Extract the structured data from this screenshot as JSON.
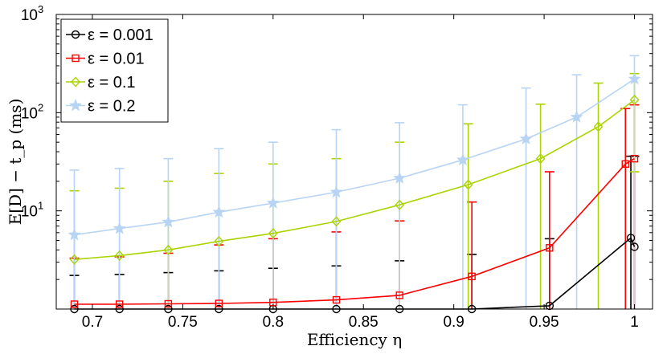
{
  "chart_data": {
    "type": "line",
    "title": "",
    "xlabel": "Efficiency η",
    "ylabel": "E[D] − t_p (ms)",
    "yscale": "log",
    "xlim": [
      0.68,
      1.01
    ],
    "ylim": [
      1,
      1000
    ],
    "x_ticks": [
      "0.7",
      "0.75",
      "0.8",
      "0.85",
      "0.9",
      "0.95",
      "1"
    ],
    "x_tick_values": [
      0.7,
      0.75,
      0.8,
      0.85,
      0.9,
      0.95,
      1.0
    ],
    "y_ticks": [
      {
        "base": "10",
        "exp": "1",
        "value": 10
      },
      {
        "base": "10",
        "exp": "2",
        "value": 100
      },
      {
        "base": "10",
        "exp": "3",
        "value": 1000
      }
    ],
    "grid": false,
    "legend_position": "top-left",
    "series": [
      {
        "name": "ε = 0.001",
        "color": "#000000",
        "marker": "circle",
        "x": [
          0.69,
          0.715,
          0.742,
          0.77,
          0.8,
          0.835,
          0.87,
          0.91,
          0.953,
          0.998,
          1.0
        ],
        "y": [
          1.0,
          1.0,
          1.0,
          1.0,
          1.0,
          1.0,
          1.0,
          1.0,
          1.08,
          5.3,
          4.3
        ],
        "err_upper": [
          2.2,
          2.25,
          2.35,
          2.45,
          2.6,
          2.75,
          3.1,
          3.6,
          5.2,
          36,
          36
        ],
        "err_lower": [
          null,
          null,
          null,
          null,
          null,
          null,
          null,
          null,
          null,
          null,
          null
        ]
      },
      {
        "name": "ε = 0.01",
        "color": "#ff0000",
        "marker": "square",
        "x": [
          0.69,
          0.715,
          0.742,
          0.77,
          0.8,
          0.835,
          0.87,
          0.91,
          0.953,
          0.995,
          1.0
        ],
        "y": [
          1.12,
          1.12,
          1.13,
          1.14,
          1.17,
          1.24,
          1.38,
          2.15,
          4.2,
          30,
          34
        ],
        "err_upper": [
          3.3,
          3.4,
          3.7,
          4.5,
          5.2,
          6.1,
          7.9,
          12.3,
          25,
          110,
          120
        ],
        "err_lower": [
          null,
          null,
          null,
          null,
          null,
          null,
          null,
          null,
          null,
          null,
          null
        ]
      },
      {
        "name": "ε = 0.1",
        "color": "#aad400",
        "marker": "diamond",
        "x": [
          0.69,
          0.715,
          0.742,
          0.77,
          0.8,
          0.835,
          0.87,
          0.908,
          0.948,
          0.98,
          1.0
        ],
        "y": [
          3.2,
          3.5,
          4.0,
          4.9,
          5.9,
          7.8,
          11.5,
          18.5,
          34,
          72,
          135
        ],
        "err_upper": [
          16,
          17,
          20,
          24,
          30,
          34,
          50,
          77,
          122,
          200,
          250
        ],
        "err_lower": [
          null,
          null,
          null,
          null,
          null,
          null,
          null,
          null,
          null,
          null,
          25
        ]
      },
      {
        "name": "ε = 0.2",
        "color": "#b8d4f5",
        "marker": "star",
        "x": [
          0.69,
          0.715,
          0.742,
          0.77,
          0.8,
          0.835,
          0.87,
          0.905,
          0.94,
          0.968,
          1.0
        ],
        "y": [
          5.7,
          6.6,
          7.7,
          9.7,
          12,
          15.5,
          21.5,
          33,
          54,
          90,
          220
        ],
        "err_upper": [
          26,
          27,
          34,
          43,
          50,
          67,
          79,
          120,
          178,
          243,
          380
        ],
        "err_lower": [
          null,
          null,
          null,
          null,
          null,
          null,
          null,
          null,
          null,
          null,
          null
        ]
      }
    ]
  }
}
